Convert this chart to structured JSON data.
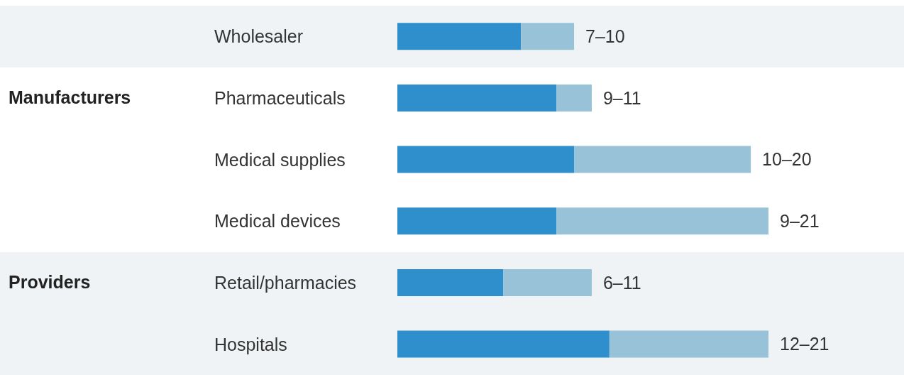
{
  "chart_data": {
    "type": "bar",
    "orientation": "horizontal",
    "stacked": true,
    "tick_labels": "y",
    "categories": [
      "Wholesaler",
      "Pharmaceuticals",
      "Medical supplies",
      "Medical devices",
      "Retail/pharmacies",
      "Hospitals"
    ],
    "xlim": [
      0,
      21
    ],
    "series": [
      {
        "color": "#2e8fcc",
        "values": [
          7,
          9,
          10,
          9,
          6,
          12
        ]
      },
      {
        "color": "#98c2d8",
        "values": [
          3,
          2,
          10,
          12,
          5,
          9
        ],
        "value_labels": [
          "7–10",
          "9–11",
          "10–20",
          "9–21",
          "6–11",
          "12–21"
        ]
      }
    ],
    "bands": [
      {
        "axis": "y",
        "from": "Wholesaler",
        "to": "Wholesaler",
        "label": null,
        "color": "#eff3f5"
      },
      {
        "axis": "y",
        "from": "Pharmaceuticals",
        "to": "Medical devices",
        "label": "Manufacturers",
        "color": "#ffffff"
      },
      {
        "axis": "y",
        "from": "Retail/pharmacies",
        "to": "Hospitals",
        "label": "Providers",
        "color": "#eff3f5"
      }
    ]
  }
}
